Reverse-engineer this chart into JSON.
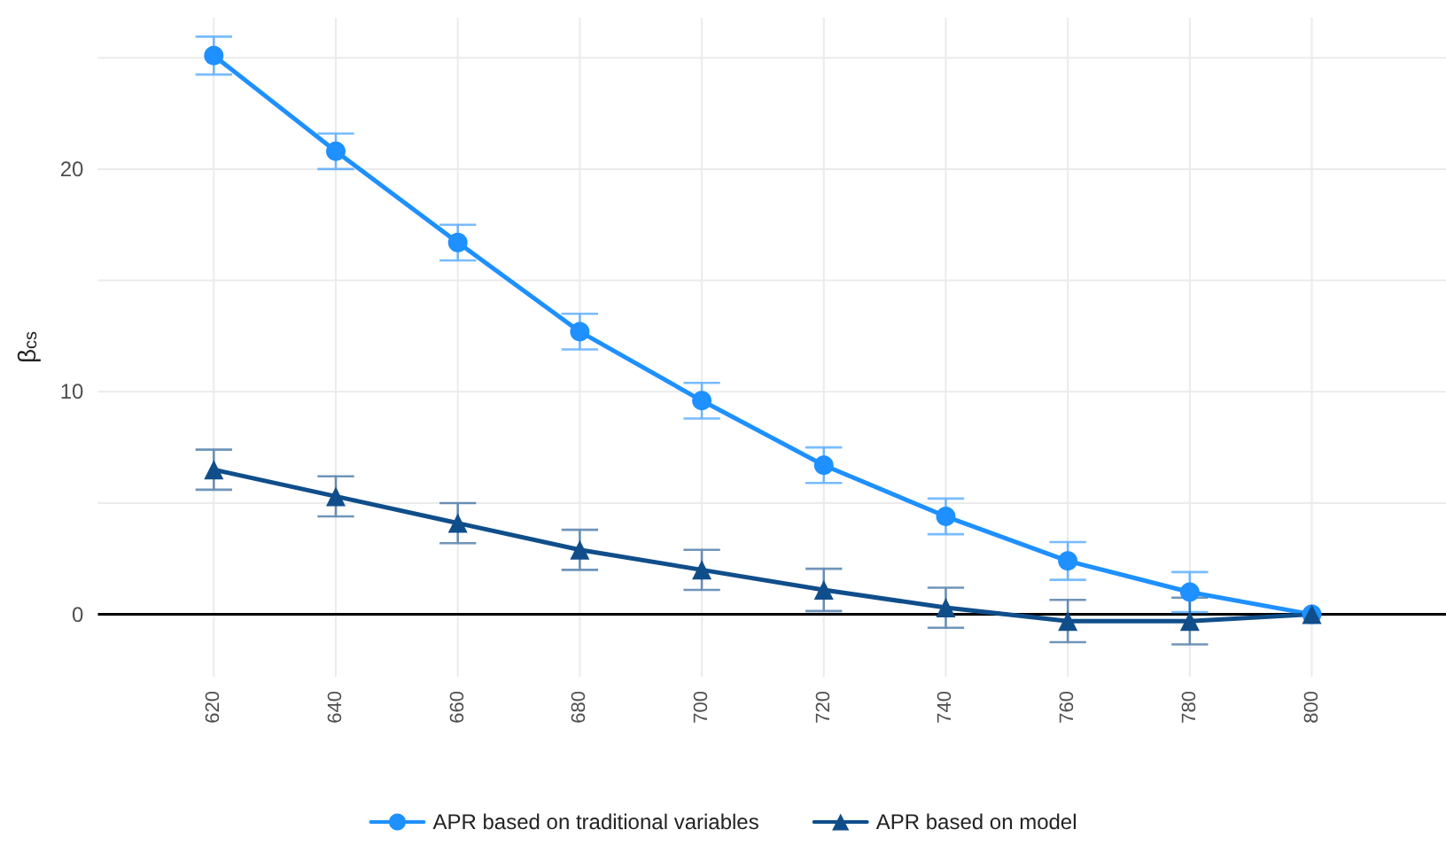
{
  "chart_data": {
    "type": "line",
    "ylabel": "β$_{cs}$",
    "x": [
      620,
      640,
      660,
      680,
      700,
      720,
      740,
      760,
      780,
      800
    ],
    "xlim": [
      601,
      822
    ],
    "xticks": [
      620,
      640,
      660,
      680,
      700,
      720,
      740,
      760,
      780,
      800
    ],
    "ylim": [
      -2.8,
      26.8
    ],
    "yticks": [
      0,
      {
        "value": 5,
        "label": null
      },
      10,
      {
        "value": 15,
        "label": null
      },
      20,
      {
        "value": 25,
        "label": null
      }
    ],
    "series": [
      {
        "name": "APR based on traditional variables",
        "color": "#1e90ff",
        "marker": "circle",
        "values": [
          25.1,
          20.8,
          16.7,
          12.7,
          9.6,
          6.7,
          4.4,
          2.4,
          1.0,
          0
        ],
        "errors": [
          0.85,
          0.8,
          0.8,
          0.8,
          0.8,
          0.8,
          0.8,
          0.85,
          0.9,
          null
        ]
      },
      {
        "name": "APR based on model",
        "color": "#104e8b",
        "marker": "triangle",
        "values": [
          6.5,
          5.3,
          4.1,
          2.9,
          2.0,
          1.1,
          0.3,
          -0.3,
          -0.3,
          0
        ],
        "errors": [
          0.9,
          0.9,
          0.9,
          0.9,
          0.9,
          0.95,
          0.9,
          0.95,
          1.05,
          null
        ]
      }
    ],
    "ref_lines": [
      {
        "axis": "y",
        "value": 0,
        "color": "#000000"
      }
    ],
    "grid": true,
    "legend": "bottom",
    "line_style": "solid"
  }
}
